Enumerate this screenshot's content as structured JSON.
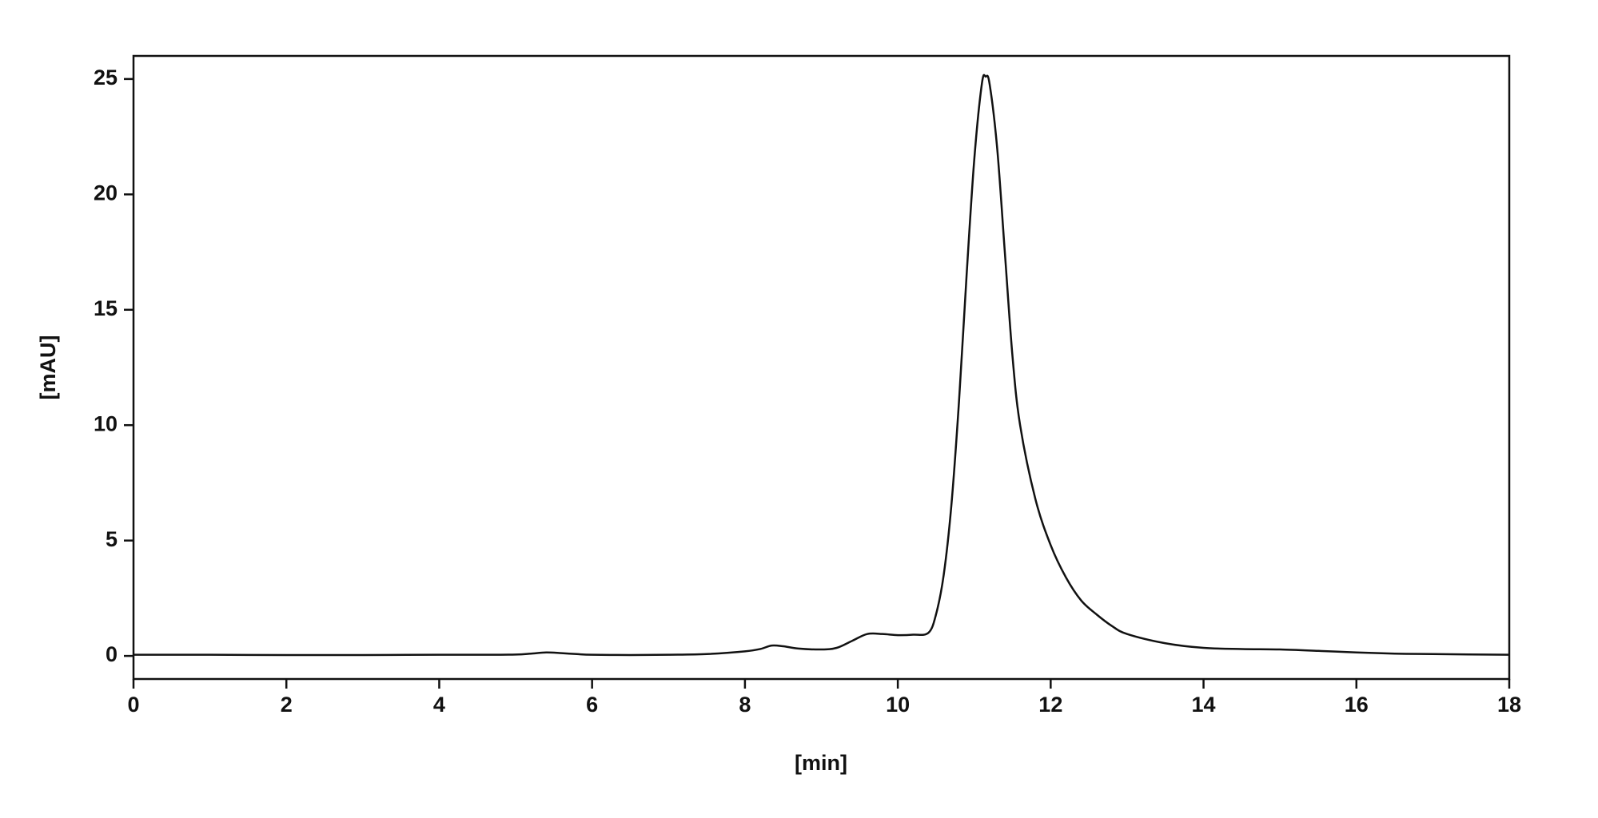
{
  "chart_data": {
    "type": "line",
    "xlabel": "[min]",
    "ylabel": "[mAU]",
    "x": [
      0,
      1,
      2,
      3,
      4,
      4.5,
      5,
      5.2,
      5.4,
      5.6,
      5.8,
      6,
      6.5,
      7,
      7.5,
      8,
      8.2,
      8.35,
      8.5,
      8.7,
      9,
      9.2,
      9.4,
      9.6,
      9.8,
      10,
      10.2,
      10.4,
      10.5,
      10.6,
      10.7,
      10.8,
      10.9,
      11,
      11.1,
      11.15,
      11.2,
      11.3,
      11.4,
      11.5,
      11.6,
      11.8,
      12,
      12.2,
      12.4,
      12.6,
      12.8,
      13,
      13.5,
      14,
      14.5,
      15,
      15.5,
      16,
      16.5,
      17,
      18
    ],
    "series": [
      {
        "color": "#111111",
        "values": [
          0.05,
          0.05,
          0.04,
          0.04,
          0.05,
          0.05,
          0.06,
          0.1,
          0.15,
          0.12,
          0.08,
          0.05,
          0.04,
          0.05,
          0.08,
          0.2,
          0.3,
          0.45,
          0.42,
          0.32,
          0.28,
          0.35,
          0.65,
          0.95,
          0.95,
          0.9,
          0.92,
          1.0,
          1.8,
          3.5,
          6.5,
          11,
          16.5,
          21.5,
          24.8,
          25.1,
          24.8,
          22,
          17.5,
          13,
          10,
          6.8,
          4.8,
          3.4,
          2.4,
          1.8,
          1.3,
          0.95,
          0.55,
          0.35,
          0.3,
          0.28,
          0.22,
          0.15,
          0.1,
          0.08,
          0.05
        ]
      }
    ],
    "xlim": [
      0,
      18
    ],
    "xticks": [
      0,
      2,
      4,
      6,
      8,
      10,
      12,
      14,
      16,
      18
    ],
    "ylim": [
      -1,
      26
    ],
    "yticks": [
      0,
      5,
      10,
      15,
      20,
      25
    ]
  }
}
